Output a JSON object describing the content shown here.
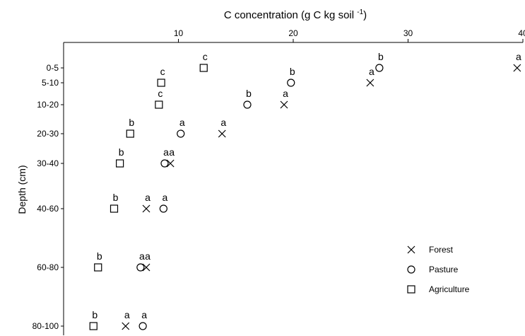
{
  "chart_data": {
    "type": "scatter",
    "title": "C concentration (g C kg soil",
    "title_superscript": "-1",
    "title_suffix": ")",
    "xlabel": "",
    "ylabel": "Depth (cm)",
    "x_axis_position": "top",
    "y_axis_inverted": true,
    "xlim": [
      0,
      40
    ],
    "xticks": [
      10,
      20,
      30,
      40
    ],
    "ylim": [
      0,
      90
    ],
    "categories": [
      "0-5",
      "5-10",
      "10-20",
      "20-30",
      "30-40",
      "40-60",
      "60-80",
      "80-100"
    ],
    "depth_midpoints": [
      2.5,
      7.5,
      15,
      25,
      35,
      50,
      70,
      90
    ],
    "legend_position": "right",
    "series": [
      {
        "name": "Forest",
        "marker": "x",
        "values": [
          39.5,
          26.7,
          19.2,
          13.8,
          9.3,
          7.2,
          7.2,
          5.4
        ],
        "labels": [
          "a",
          "a",
          "a",
          "a",
          "a",
          "a",
          "a",
          "a"
        ]
      },
      {
        "name": "Pasture",
        "marker": "circle",
        "values": [
          27.5,
          19.8,
          16.0,
          10.2,
          8.8,
          8.7,
          6.7,
          6.9
        ],
        "labels": [
          "b",
          "b",
          "b",
          "a",
          "a",
          "a",
          "a",
          "a"
        ]
      },
      {
        "name": "Agriculture",
        "marker": "square",
        "values": [
          12.2,
          8.5,
          8.3,
          5.8,
          4.9,
          4.4,
          3.0,
          2.6
        ],
        "labels": [
          "c",
          "c",
          "c",
          "b",
          "b",
          "b",
          "b",
          "b"
        ]
      }
    ]
  }
}
